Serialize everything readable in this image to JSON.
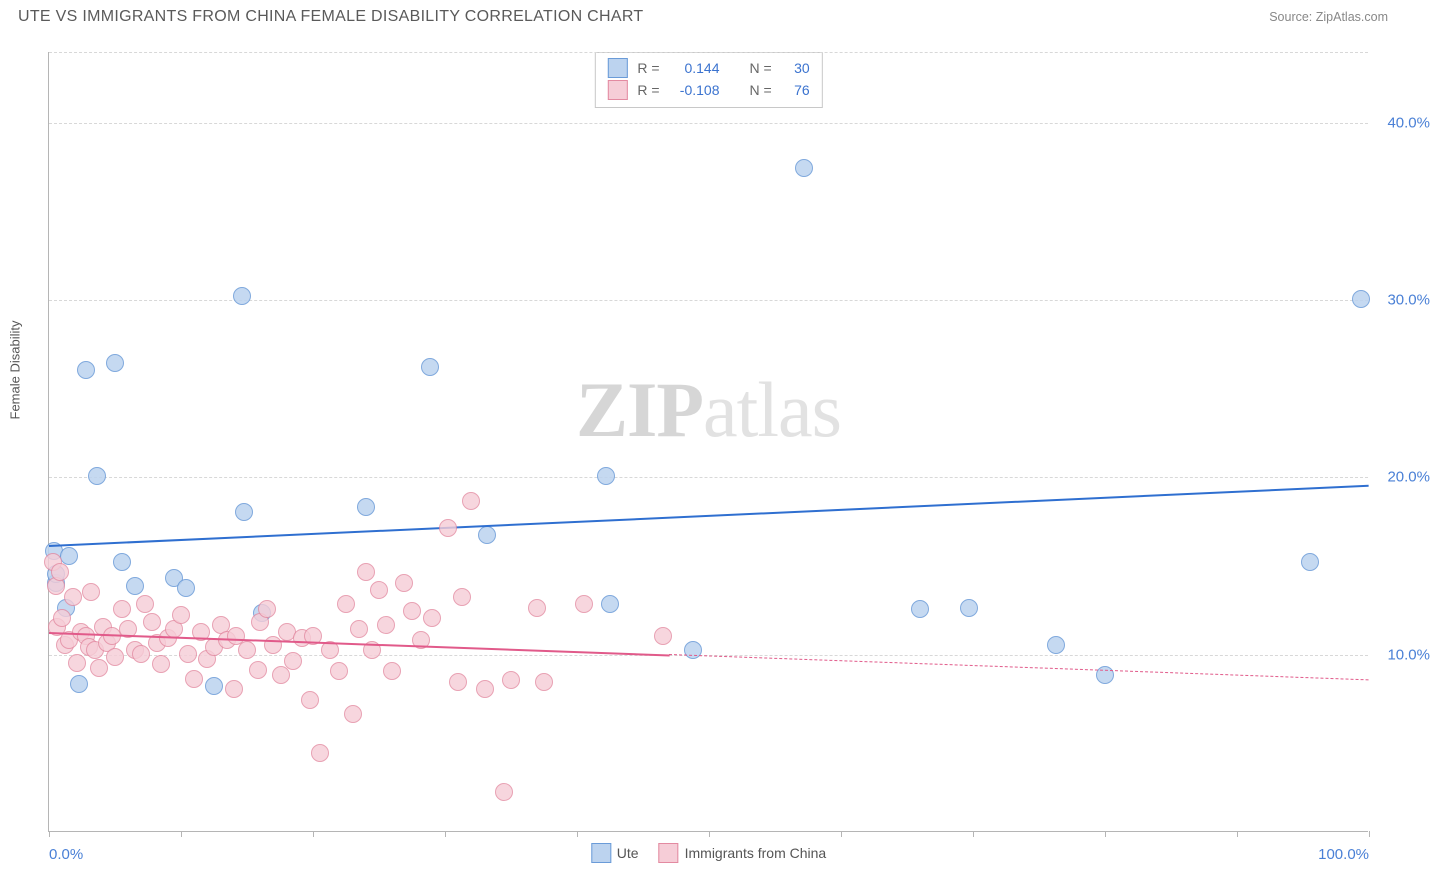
{
  "title": "UTE VS IMMIGRANTS FROM CHINA FEMALE DISABILITY CORRELATION CHART",
  "source": "Source: ZipAtlas.com",
  "yaxis_title": "Female Disability",
  "watermark_a": "ZIP",
  "watermark_b": "atlas",
  "background_color": "#ffffff",
  "grid_color": "#d8d8d8",
  "axis_color": "#b5b5b5",
  "xlim": [
    0,
    100
  ],
  "ylim": [
    0,
    44
  ],
  "yticks": [
    {
      "v": 10,
      "label": "10.0%",
      "color": "#4a80d6"
    },
    {
      "v": 20,
      "label": "20.0%",
      "color": "#4a80d6"
    },
    {
      "v": 30,
      "label": "30.0%",
      "color": "#4a80d6"
    },
    {
      "v": 40,
      "label": "40.0%",
      "color": "#4a80d6"
    }
  ],
  "xticks_at": [
    0,
    10,
    20,
    30,
    40,
    50,
    60,
    70,
    80,
    90,
    100
  ],
  "xlabels": [
    {
      "v": 0,
      "label": "0.0%",
      "color": "#4a80d6"
    },
    {
      "v": 100,
      "label": "100.0%",
      "color": "#4a80d6"
    }
  ],
  "series": [
    {
      "name": "Ute",
      "marker_fill": "#bcd3ef",
      "marker_stroke": "#6a9bd8",
      "marker_radius": 9,
      "marker_opacity": 0.85,
      "line_color": "#2f6fd0",
      "reg_y_at_x0": 16.2,
      "reg_y_at_x100": 19.6,
      "reg_solid_until": 100,
      "R_label": "R =",
      "R": "0.144",
      "N_label": "N =",
      "N": "30",
      "points": [
        [
          0.4,
          15.8
        ],
        [
          0.5,
          14.0
        ],
        [
          0.5,
          14.5
        ],
        [
          1.3,
          12.6
        ],
        [
          1.5,
          15.5
        ],
        [
          2.3,
          8.3
        ],
        [
          2.8,
          26.0
        ],
        [
          3.6,
          20.0
        ],
        [
          5.0,
          26.4
        ],
        [
          5.5,
          15.2
        ],
        [
          6.5,
          13.8
        ],
        [
          9.5,
          14.3
        ],
        [
          10.4,
          13.7
        ],
        [
          12.5,
          8.2
        ],
        [
          14.6,
          30.2
        ],
        [
          14.8,
          18.0
        ],
        [
          16.1,
          12.3
        ],
        [
          24.0,
          18.3
        ],
        [
          28.9,
          26.2
        ],
        [
          33.2,
          16.7
        ],
        [
          42.2,
          20.0
        ],
        [
          42.5,
          12.8
        ],
        [
          48.8,
          10.2
        ],
        [
          57.2,
          37.4
        ],
        [
          66.0,
          12.5
        ],
        [
          69.7,
          12.6
        ],
        [
          76.3,
          10.5
        ],
        [
          80.0,
          8.8
        ],
        [
          95.5,
          15.2
        ],
        [
          99.4,
          30.0
        ]
      ]
    },
    {
      "name": "Immigrants from China",
      "marker_fill": "#f6cdd7",
      "marker_stroke": "#e38aa1",
      "marker_radius": 9,
      "marker_opacity": 0.8,
      "line_color": "#e15a8a",
      "reg_y_at_x0": 11.3,
      "reg_y_at_x100": 8.6,
      "reg_solid_until": 47,
      "R_label": "R =",
      "R": "-0.108",
      "N_label": "N =",
      "N": "76",
      "points": [
        [
          0.3,
          15.2
        ],
        [
          0.5,
          13.8
        ],
        [
          0.6,
          11.5
        ],
        [
          0.8,
          14.6
        ],
        [
          1.0,
          12.0
        ],
        [
          1.2,
          10.5
        ],
        [
          1.5,
          10.8
        ],
        [
          1.8,
          13.2
        ],
        [
          2.1,
          9.5
        ],
        [
          2.4,
          11.2
        ],
        [
          2.8,
          11.0
        ],
        [
          3.0,
          10.4
        ],
        [
          3.2,
          13.5
        ],
        [
          3.5,
          10.2
        ],
        [
          3.8,
          9.2
        ],
        [
          4.1,
          11.5
        ],
        [
          4.4,
          10.6
        ],
        [
          4.8,
          11.0
        ],
        [
          5.0,
          9.8
        ],
        [
          5.5,
          12.5
        ],
        [
          6.0,
          11.4
        ],
        [
          6.5,
          10.2
        ],
        [
          7.0,
          10.0
        ],
        [
          7.3,
          12.8
        ],
        [
          7.8,
          11.8
        ],
        [
          8.2,
          10.6
        ],
        [
          8.5,
          9.4
        ],
        [
          9.0,
          10.9
        ],
        [
          9.5,
          11.4
        ],
        [
          10.0,
          12.2
        ],
        [
          10.5,
          10.0
        ],
        [
          11.0,
          8.6
        ],
        [
          11.5,
          11.2
        ],
        [
          12.0,
          9.7
        ],
        [
          12.5,
          10.4
        ],
        [
          13.0,
          11.6
        ],
        [
          13.5,
          10.8
        ],
        [
          14.0,
          8.0
        ],
        [
          14.2,
          11.0
        ],
        [
          15.0,
          10.2
        ],
        [
          15.8,
          9.1
        ],
        [
          16.0,
          11.8
        ],
        [
          16.5,
          12.5
        ],
        [
          17.0,
          10.5
        ],
        [
          17.6,
          8.8
        ],
        [
          18.0,
          11.2
        ],
        [
          18.5,
          9.6
        ],
        [
          19.2,
          10.9
        ],
        [
          19.8,
          7.4
        ],
        [
          20.0,
          11.0
        ],
        [
          20.5,
          4.4
        ],
        [
          21.3,
          10.2
        ],
        [
          22.0,
          9.0
        ],
        [
          22.5,
          12.8
        ],
        [
          23.0,
          6.6
        ],
        [
          23.5,
          11.4
        ],
        [
          24.0,
          14.6
        ],
        [
          24.5,
          10.2
        ],
        [
          25.0,
          13.6
        ],
        [
          25.5,
          11.6
        ],
        [
          26.0,
          9.0
        ],
        [
          26.9,
          14.0
        ],
        [
          27.5,
          12.4
        ],
        [
          28.2,
          10.8
        ],
        [
          29.0,
          12.0
        ],
        [
          30.2,
          17.1
        ],
        [
          31.0,
          8.4
        ],
        [
          31.3,
          13.2
        ],
        [
          32.0,
          18.6
        ],
        [
          33.0,
          8.0
        ],
        [
          34.5,
          2.2
        ],
        [
          35.0,
          8.5
        ],
        [
          37.0,
          12.6
        ],
        [
          37.5,
          8.4
        ],
        [
          40.5,
          12.8
        ],
        [
          46.5,
          11.0
        ]
      ]
    }
  ],
  "legend": {
    "items": [
      "Ute",
      "Immigrants from China"
    ]
  }
}
